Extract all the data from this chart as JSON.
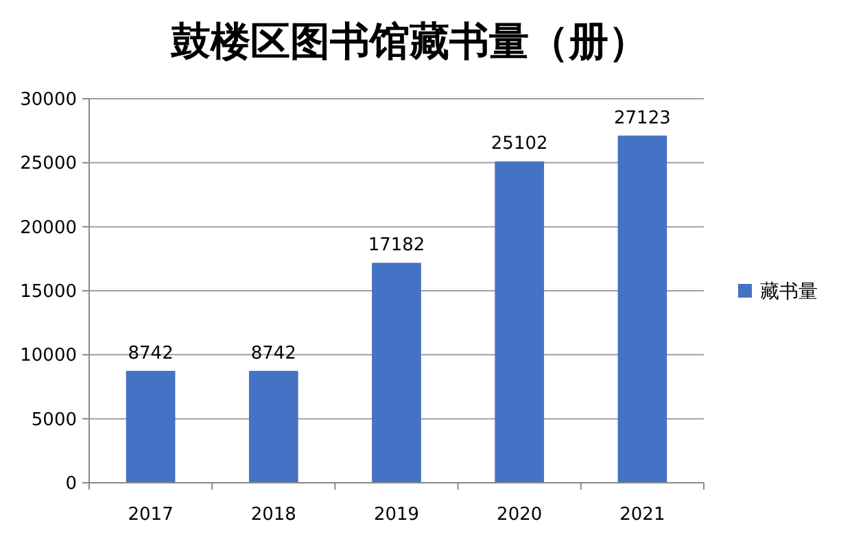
{
  "chart_data": {
    "type": "bar",
    "title": "鼓楼区图书馆藏书量（册）",
    "categories": [
      "2017",
      "2018",
      "2019",
      "2020",
      "2021"
    ],
    "series": [
      {
        "name": "藏书量",
        "color": "#4472c4",
        "values": [
          8742,
          8742,
          17182,
          25102,
          27123
        ]
      }
    ],
    "ylim": [
      0,
      30000
    ],
    "yticks": [
      0,
      5000,
      10000,
      15000,
      20000,
      25000,
      30000
    ],
    "grid": "y",
    "legend": "right",
    "data_labels": true
  }
}
